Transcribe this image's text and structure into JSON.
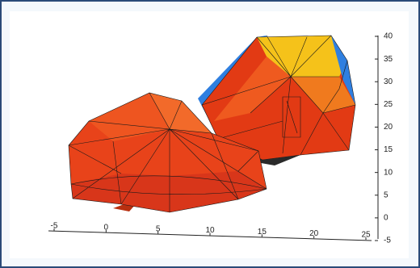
{
  "chart_data": {
    "type": "mesh3d",
    "xlim": [
      -5,
      25
    ],
    "xticks": [
      -5,
      0,
      5,
      10,
      15,
      20,
      25
    ],
    "zlim": [
      -5,
      40
    ],
    "zticks": [
      40,
      35,
      30,
      25,
      20,
      15,
      10,
      5,
      0,
      -5
    ]
  }
}
